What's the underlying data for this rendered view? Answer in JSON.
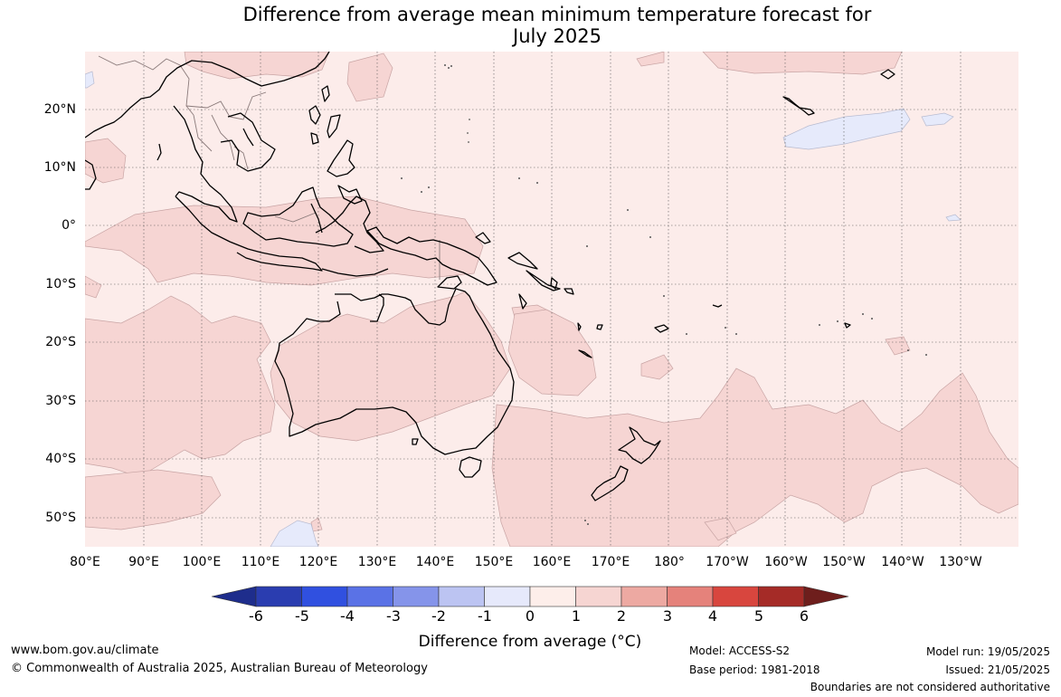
{
  "title": {
    "line1": "Difference from average mean minimum temperature forecast for",
    "line2": "July 2025"
  },
  "axes": {
    "lat_labels": [
      "20°N",
      "10°N",
      "0°",
      "10°S",
      "20°S",
      "30°S",
      "40°S",
      "50°S"
    ],
    "lon_labels": [
      "80°E",
      "90°E",
      "100°E",
      "110°E",
      "120°E",
      "130°E",
      "140°E",
      "150°E",
      "160°E",
      "170°E",
      "180°",
      "170°W",
      "160°W",
      "150°W",
      "140°W",
      "130°W"
    ]
  },
  "colorbar": {
    "ticks": [
      "-6",
      "-5",
      "-4",
      "-3",
      "-2",
      "-1",
      "0",
      "1",
      "2",
      "3",
      "4",
      "5",
      "6"
    ],
    "colors": [
      "#1e2d8c",
      "#2a3db0",
      "#3050e0",
      "#5a72e6",
      "#8594ea",
      "#bcc4f2",
      "#e6e9fb",
      "#fdeeea",
      "#f6d5d2",
      "#eda9a2",
      "#e5827b",
      "#d8463e",
      "#a52b27",
      "#6e1e1c"
    ],
    "title": "Difference from average (°C)"
  },
  "map_colors": {
    "background": "#fcecea",
    "warm_anomaly": "#f6d5d3",
    "cool_anomaly": "#e6eafb",
    "land_outline": "#000000",
    "border": "#8a7a7a",
    "grid": "#555555"
  },
  "footer": {
    "website": "www.bom.gov.au/climate",
    "copyright": "© Commonwealth of Australia 2025, Australian Bureau of Meteorology",
    "model": "Model: ACCESS-S2",
    "base_period": "Base period: 1981-2018",
    "model_run": "Model run: 19/05/2025",
    "issued": "Issued: 21/05/2025",
    "disclaimer": "Boundaries are not considered authoritative"
  }
}
